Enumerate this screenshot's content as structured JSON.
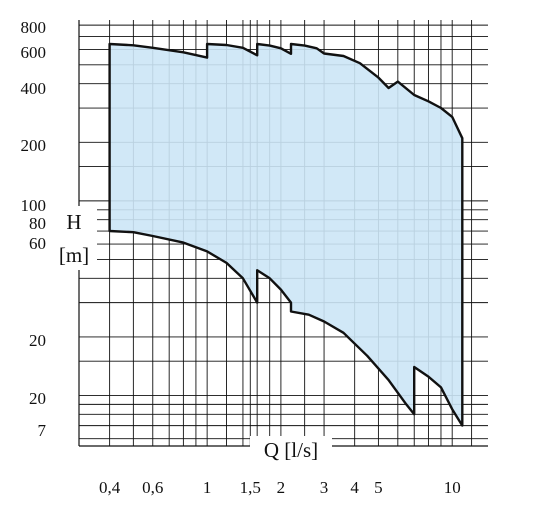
{
  "chart_data": {
    "type": "area",
    "title": "",
    "xlabel": "Q [l/s]",
    "ylabel_symbol": "H",
    "ylabel_unit": "[m]",
    "xscale": "log",
    "yscale": "log",
    "xlim": [
      0.3,
      14
    ],
    "ylim": [
      5.5,
      850
    ],
    "grid": true,
    "fill_color": "#cce6f6",
    "line_color": "#111111",
    "grid_color": "#111111",
    "x_tick_labels": [
      {
        "value": 0.4,
        "label": "0,4"
      },
      {
        "value": 0.6,
        "label": "0,6"
      },
      {
        "value": 1,
        "label": "1"
      },
      {
        "value": 1.5,
        "label": "1,5"
      },
      {
        "value": 2,
        "label": "2"
      },
      {
        "value": 3,
        "label": "3"
      },
      {
        "value": 4,
        "label": "4"
      },
      {
        "value": 5,
        "label": "5"
      },
      {
        "value": 10,
        "label": "10"
      }
    ],
    "y_tick_labels": [
      {
        "value": 800,
        "label": "800"
      },
      {
        "value": 600,
        "label": "600"
      },
      {
        "value": 400,
        "label": "400"
      },
      {
        "value": 200,
        "label": "200"
      },
      {
        "value": 100,
        "label": "100"
      },
      {
        "value": 80,
        "label": "80"
      },
      {
        "value": 60,
        "label": "60"
      },
      {
        "value": 20,
        "label": "20"
      },
      {
        "value": 20,
        "label": "20"
      },
      {
        "value": 7,
        "label": "7"
      }
    ],
    "x_gridlines": [
      0.4,
      0.5,
      0.6,
      0.7,
      0.8,
      0.9,
      1,
      1.2,
      1.4,
      1.5,
      1.6,
      1.8,
      2,
      2.5,
      3,
      4,
      5,
      6,
      7,
      8,
      9,
      10,
      12
    ],
    "y_gridlines": [
      800,
      700,
      600,
      500,
      400,
      300,
      200,
      150,
      100,
      90,
      80,
      70,
      60,
      50,
      40,
      30,
      20,
      15,
      10,
      9,
      8,
      7,
      6
    ],
    "upper_boundary": [
      {
        "x": 0.4,
        "y": 640
      },
      {
        "x": 0.5,
        "y": 630
      },
      {
        "x": 0.6,
        "y": 612
      },
      {
        "x": 0.8,
        "y": 580
      },
      {
        "x": 1.0,
        "y": 545
      },
      {
        "x": 1.0,
        "y": 640
      },
      {
        "x": 1.2,
        "y": 632
      },
      {
        "x": 1.4,
        "y": 612
      },
      {
        "x": 1.6,
        "y": 560
      },
      {
        "x": 1.6,
        "y": 640
      },
      {
        "x": 1.8,
        "y": 628
      },
      {
        "x": 2.0,
        "y": 608
      },
      {
        "x": 2.2,
        "y": 570
      },
      {
        "x": 2.2,
        "y": 640
      },
      {
        "x": 2.5,
        "y": 628
      },
      {
        "x": 2.8,
        "y": 608
      },
      {
        "x": 3.0,
        "y": 572
      },
      {
        "x": 3.6,
        "y": 555
      },
      {
        "x": 4.2,
        "y": 510
      },
      {
        "x": 5.0,
        "y": 430
      },
      {
        "x": 5.5,
        "y": 380
      },
      {
        "x": 6.0,
        "y": 410
      },
      {
        "x": 7.0,
        "y": 350
      },
      {
        "x": 8.0,
        "y": 325
      },
      {
        "x": 9.0,
        "y": 300
      },
      {
        "x": 10.0,
        "y": 270
      },
      {
        "x": 11.0,
        "y": 210
      }
    ],
    "lower_boundary": [
      {
        "x": 0.4,
        "y": 70
      },
      {
        "x": 0.5,
        "y": 69
      },
      {
        "x": 0.6,
        "y": 66
      },
      {
        "x": 0.8,
        "y": 61
      },
      {
        "x": 1.0,
        "y": 55
      },
      {
        "x": 1.2,
        "y": 48
      },
      {
        "x": 1.4,
        "y": 40
      },
      {
        "x": 1.6,
        "y": 30
      },
      {
        "x": 1.6,
        "y": 44
      },
      {
        "x": 1.8,
        "y": 40
      },
      {
        "x": 2.0,
        "y": 35
      },
      {
        "x": 2.2,
        "y": 30
      },
      {
        "x": 2.2,
        "y": 27
      },
      {
        "x": 2.6,
        "y": 26
      },
      {
        "x": 3.0,
        "y": 24
      },
      {
        "x": 3.6,
        "y": 21
      },
      {
        "x": 4.5,
        "y": 16
      },
      {
        "x": 5.5,
        "y": 12
      },
      {
        "x": 6.5,
        "y": 9
      },
      {
        "x": 7.0,
        "y": 8
      },
      {
        "x": 7.0,
        "y": 14
      },
      {
        "x": 8.0,
        "y": 12.5
      },
      {
        "x": 9.0,
        "y": 11
      },
      {
        "x": 10.0,
        "y": 8.5
      },
      {
        "x": 11.0,
        "y": 7
      }
    ]
  }
}
